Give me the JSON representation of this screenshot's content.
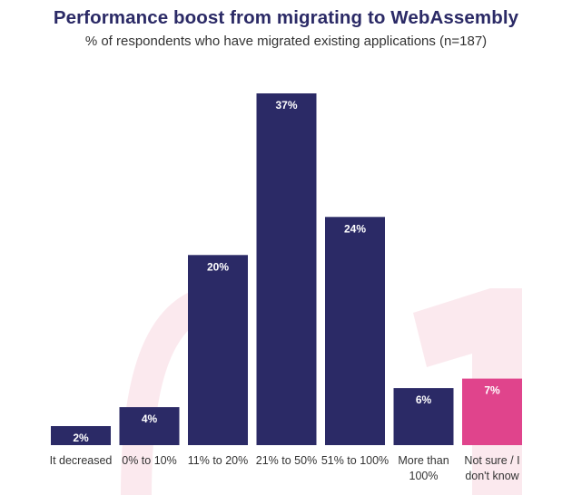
{
  "header": {
    "title": "Performance boost from migrating to WebAssembly",
    "subtitle": "% of respondents who have migrated existing applications (n=187)"
  },
  "colors": {
    "primary": "#2b2a66",
    "highlight": "#e0448c",
    "watermark": "#fbe9ee",
    "text": "#333333"
  },
  "chart_data": {
    "type": "bar",
    "title": "Performance boost from migrating to WebAssembly",
    "subtitle": "% of respondents who have migrated existing applications (n=187)",
    "categories": [
      "It decreased",
      "0% to 10%",
      "11% to 20%",
      "21% to 50%",
      "51% to 100%",
      "More than 100%",
      "Not sure / I don't know"
    ],
    "category_lines": [
      [
        "It decreased"
      ],
      [
        "0% to 10%"
      ],
      [
        "11% to 20%"
      ],
      [
        "21% to 50%"
      ],
      [
        "51% to 100%"
      ],
      [
        "More than",
        "100%"
      ],
      [
        "Not sure / I",
        "don't know"
      ]
    ],
    "values": [
      2,
      4,
      20,
      37,
      24,
      6,
      7
    ],
    "value_labels": [
      "2%",
      "4%",
      "20%",
      "37%",
      "24%",
      "6%",
      "7%"
    ],
    "highlight_index": 6,
    "unit": "%",
    "ylim": [
      0,
      37
    ],
    "grid": false,
    "legend": "none"
  }
}
